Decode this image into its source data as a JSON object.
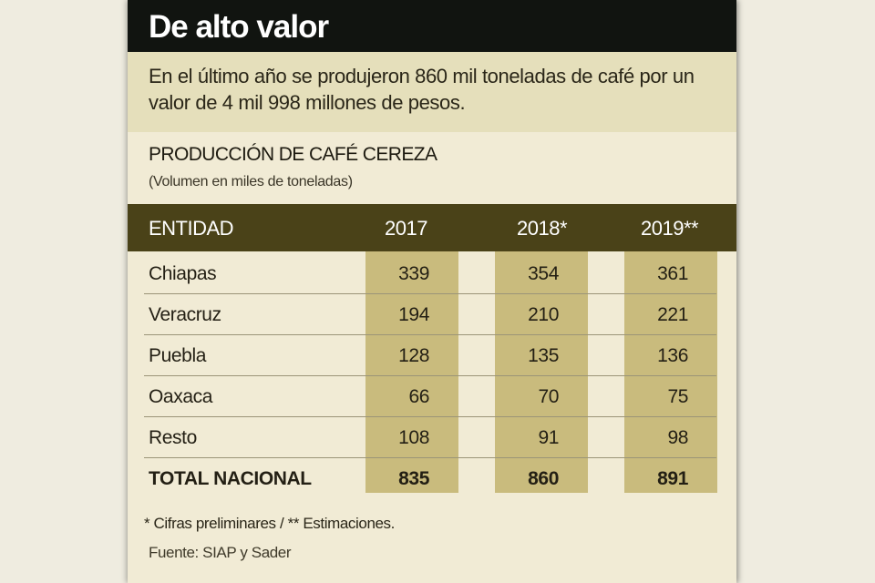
{
  "title": "De alto valor",
  "intro": "En el último año se produjeron 860 mil toneladas de café por un valor de 4 mil 998 millones de pesos.",
  "chart_data": {
    "type": "table",
    "title": "PRODUCCIÓN DE CAFÉ CEREZA",
    "subtitle": "(Volumen en miles de toneladas)",
    "columns": [
      "ENTIDAD",
      "2017",
      "2018*",
      "2019**"
    ],
    "rows": [
      {
        "label": "Chiapas",
        "values": [
          "339",
          "354",
          "361"
        ]
      },
      {
        "label": "Veracruz",
        "values": [
          "194",
          "210",
          "221"
        ]
      },
      {
        "label": "Puebla",
        "values": [
          "128",
          "135",
          "136"
        ]
      },
      {
        "label": "Oaxaca",
        "values": [
          "66",
          "70",
          "75"
        ]
      },
      {
        "label": "Resto",
        "values": [
          "108",
          "91",
          "98"
        ]
      },
      {
        "label": "TOTAL NACIONAL",
        "values": [
          "835",
          "860",
          "891"
        ]
      }
    ]
  },
  "footnote": "* Cifras preliminares  / ** Estimaciones.",
  "source": "Fuente: SIAP y Sader",
  "colors": {
    "title_bar": "#111410",
    "intro_band": "#e5dfbb",
    "header_bar": "#4a4218",
    "column_highlight": "#c9bb7d",
    "background": "#f1ebd5"
  }
}
